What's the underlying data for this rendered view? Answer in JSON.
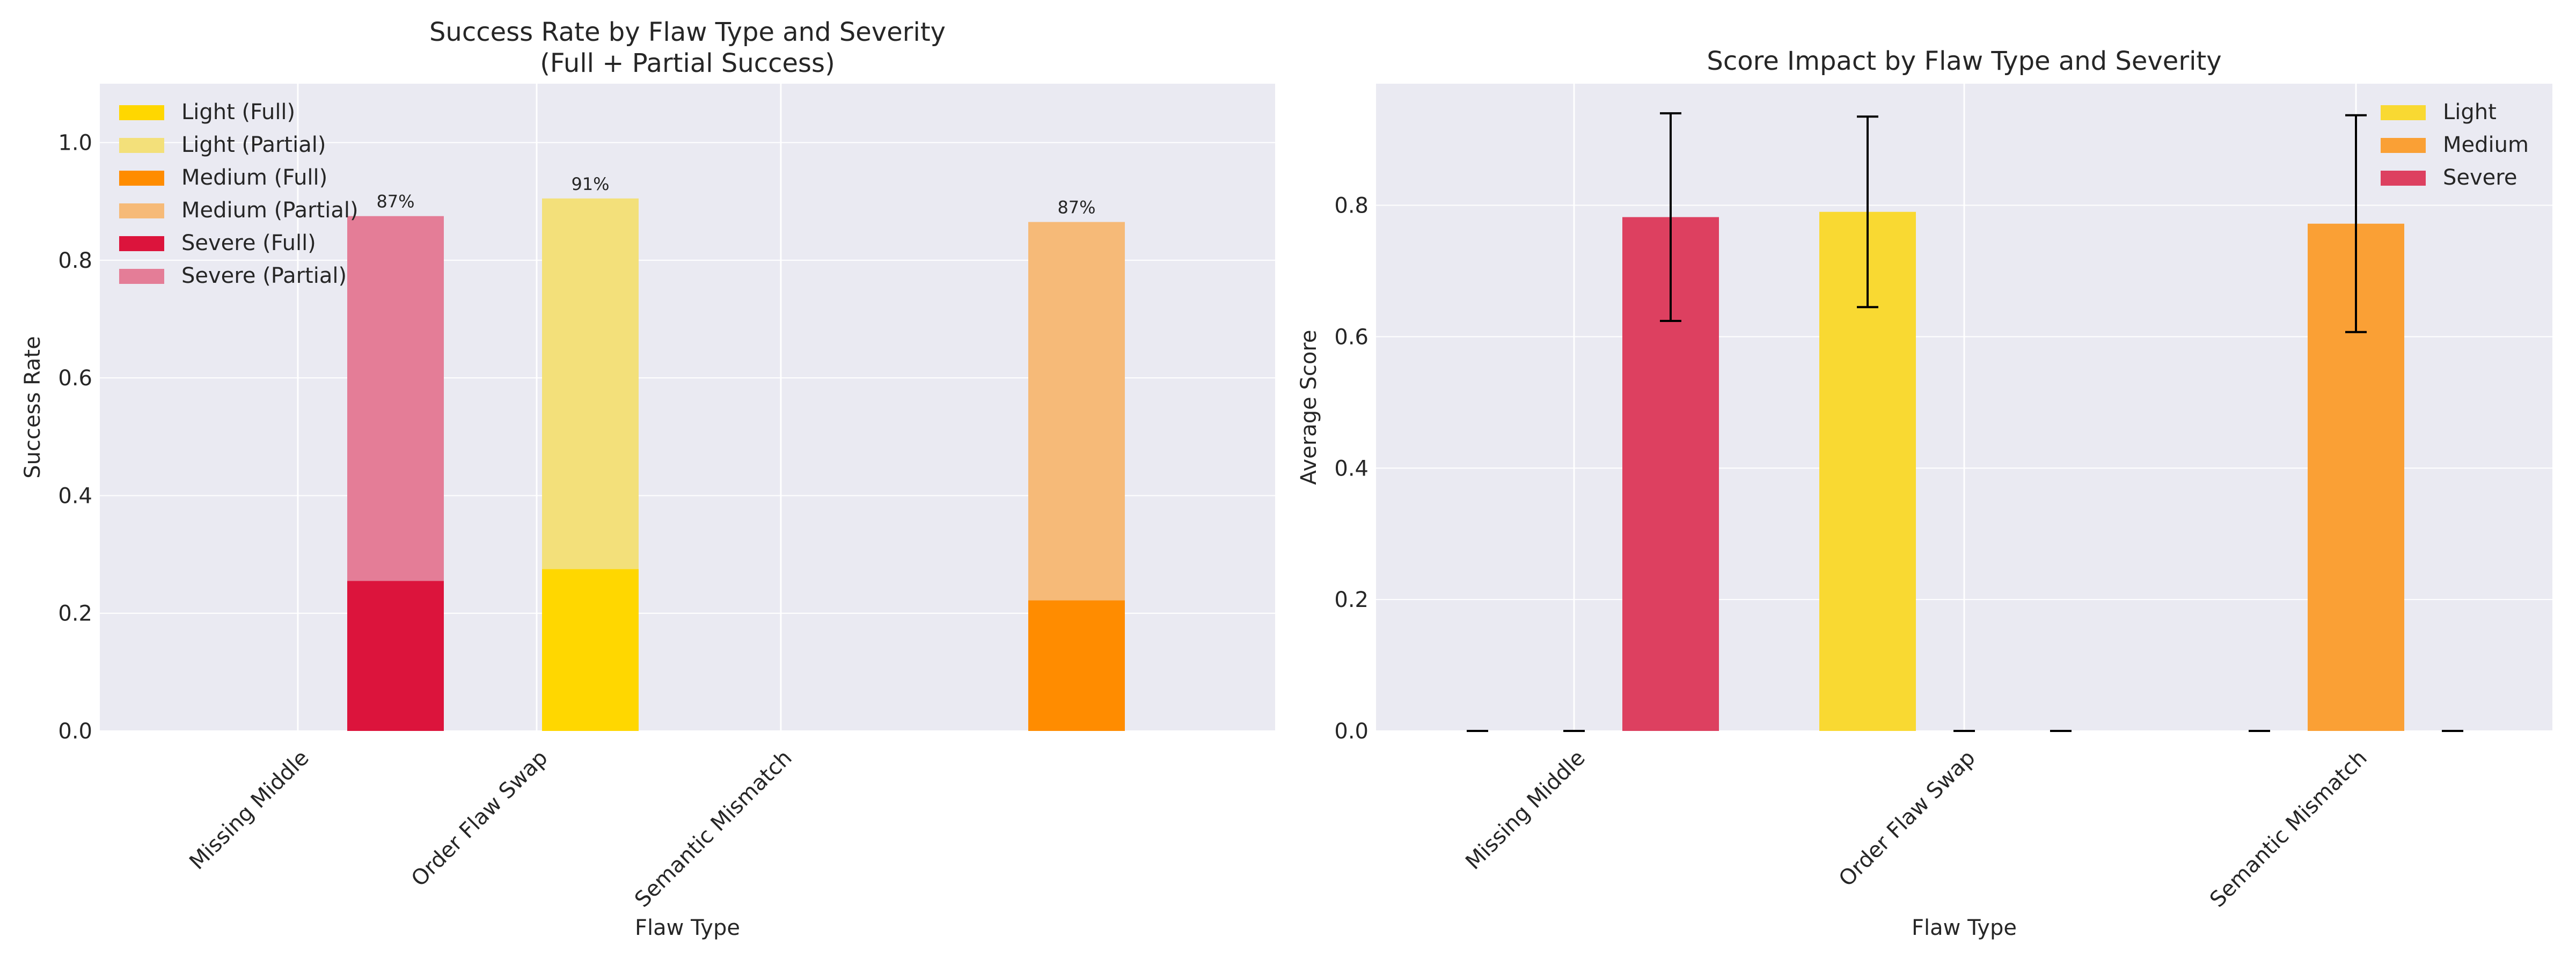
{
  "colors": {
    "panel_bg": "#EAEAF2",
    "grid": "#ffffff",
    "light_full": "#FFD700",
    "light_partial": "#F3E07A",
    "medium_full": "#FF8C00",
    "medium_partial": "#F6BA78",
    "severe_full": "#DC143C",
    "severe_partial": "#E47D97",
    "light": "#F9D932",
    "medium": "#FAA035",
    "severe": "#DD4060",
    "errorbar": "#000000"
  },
  "chart_data": [
    {
      "type": "bar",
      "stacked": true,
      "title": "Success Rate by Flaw Type and Severity",
      "subtitle": "(Full + Partial Success)",
      "xlabel": "Flaw Type",
      "ylabel": "Success Rate",
      "ylim": [
        0,
        1.1
      ],
      "yticks": [
        "0.0",
        "0.2",
        "0.4",
        "0.6",
        "0.8",
        "1.0"
      ],
      "categories": [
        "Missing Middle",
        "Order Flaw Swap",
        "Semantic Mismatch"
      ],
      "legend_position": "top-left",
      "grid": true,
      "legend": [
        {
          "label": "Light (Full)",
          "color_key": "light_full"
        },
        {
          "label": "Light (Partial)",
          "color_key": "light_partial"
        },
        {
          "label": "Medium (Full)",
          "color_key": "medium_full"
        },
        {
          "label": "Medium (Partial)",
          "color_key": "medium_partial"
        },
        {
          "label": "Severe (Full)",
          "color_key": "severe_full"
        },
        {
          "label": "Severe (Partial)",
          "color_key": "severe_partial"
        }
      ],
      "bars": [
        {
          "category": "Missing Middle",
          "severity": "Severe",
          "full": 0.255,
          "partial": 0.62,
          "total_label": "87%",
          "full_color": "severe_full",
          "partial_color": "severe_partial"
        },
        {
          "category": "Order Flaw Swap",
          "severity": "Light",
          "full": 0.275,
          "partial": 0.63,
          "total_label": "91%",
          "full_color": "light_full",
          "partial_color": "light_partial"
        },
        {
          "category": "Semantic Mismatch",
          "severity": "Medium",
          "full": 0.222,
          "partial": 0.643,
          "total_label": "87%",
          "full_color": "medium_full",
          "partial_color": "medium_partial"
        }
      ]
    },
    {
      "type": "bar",
      "title": "Score Impact by Flaw Type and Severity",
      "xlabel": "Flaw Type",
      "ylabel": "Average Score",
      "ylim": [
        0,
        0.985
      ],
      "yticks": [
        "0.0",
        "0.2",
        "0.4",
        "0.6",
        "0.8"
      ],
      "categories": [
        "Missing Middle",
        "Order Flaw Swap",
        "Semantic Mismatch"
      ],
      "legend_position": "top-right",
      "grid": true,
      "series": [
        {
          "name": "Light",
          "color_key": "light",
          "values": [
            0,
            0.79,
            0
          ],
          "errors": [
            0,
            0.145,
            0
          ]
        },
        {
          "name": "Medium",
          "color_key": "medium",
          "values": [
            0,
            0,
            0.772
          ],
          "errors": [
            0,
            0,
            0.165
          ]
        },
        {
          "name": "Severe",
          "color_key": "severe",
          "values": [
            0.782,
            0,
            0
          ],
          "errors": [
            0.158,
            0,
            0
          ]
        }
      ]
    }
  ]
}
